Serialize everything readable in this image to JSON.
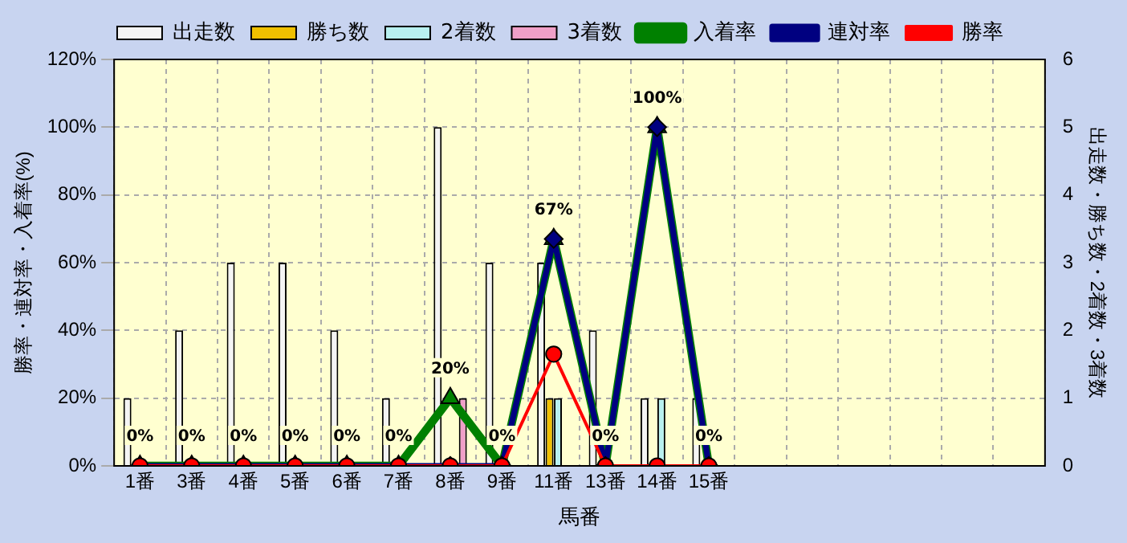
{
  "chart_data": {
    "type": "bar",
    "xlabel": "馬番",
    "ylabel": "勝率・連対率・入着率(%)",
    "y2label": "出走数・勝ち数・2着数・3着数",
    "categories": [
      "1番",
      "3番",
      "4番",
      "5番",
      "6番",
      "7番",
      "8番",
      "9番",
      "11番",
      "13番",
      "14番",
      "15番",
      null,
      null,
      null,
      null,
      null,
      null
    ],
    "series": [
      {
        "name": "出走数",
        "type": "bar",
        "axis": "y2",
        "color": "#f4f4f4",
        "values": [
          1,
          2,
          3,
          3,
          2,
          1,
          5,
          3,
          3,
          2,
          1,
          1,
          null,
          null,
          null,
          null,
          null,
          null
        ]
      },
      {
        "name": "勝ち数",
        "type": "bar",
        "axis": "y2",
        "color": "#f0c000",
        "values": [
          0,
          0,
          0,
          0,
          0,
          0,
          0,
          0,
          1,
          0,
          0,
          0,
          null,
          null,
          null,
          null,
          null,
          null
        ]
      },
      {
        "name": "2着数",
        "type": "bar",
        "axis": "y2",
        "color": "#b8f0f0",
        "values": [
          0,
          0,
          0,
          0,
          0,
          0,
          0,
          0,
          1,
          0,
          1,
          0,
          null,
          null,
          null,
          null,
          null,
          null
        ]
      },
      {
        "name": "3着数",
        "type": "bar",
        "axis": "y2",
        "color": "#f0a0c8",
        "values": [
          0,
          0,
          0,
          0,
          0,
          0,
          1,
          0,
          0,
          0,
          0,
          0,
          null,
          null,
          null,
          null,
          null,
          null
        ]
      },
      {
        "name": "入着率",
        "type": "line",
        "marker": "triangle",
        "color": "#008000",
        "values": [
          0,
          0,
          0,
          0,
          0,
          0,
          20,
          0,
          67,
          0,
          100,
          0,
          null,
          null,
          null,
          null,
          null,
          null
        ],
        "value_labels": [
          "0%",
          "0%",
          "0%",
          "0%",
          "0%",
          "0%",
          "20%",
          "0%",
          "67%",
          "0%",
          "100%",
          "0%",
          null,
          null,
          null,
          null,
          null,
          null
        ]
      },
      {
        "name": "連対率",
        "type": "line",
        "marker": "diamond",
        "color": "#000080",
        "values": [
          0,
          0,
          0,
          0,
          0,
          0,
          0,
          0,
          67,
          0,
          100,
          0,
          null,
          null,
          null,
          null,
          null,
          null
        ]
      },
      {
        "name": "勝率",
        "type": "line",
        "marker": "circle",
        "color": "#ff0000",
        "values": [
          0,
          0,
          0,
          0,
          0,
          0,
          0,
          0,
          33,
          0,
          0,
          0,
          null,
          null,
          null,
          null,
          null,
          null
        ]
      }
    ],
    "ylim": [
      0,
      120
    ],
    "yticks": [
      {
        "value": 0,
        "label": "0%"
      },
      {
        "value": 20,
        "label": "20%"
      },
      {
        "value": 40,
        "label": "40%"
      },
      {
        "value": 60,
        "label": "60%"
      },
      {
        "value": 80,
        "label": "80%"
      },
      {
        "value": 100,
        "label": "100%"
      },
      {
        "value": 120,
        "label": "120%"
      }
    ],
    "y2lim": [
      0,
      6
    ],
    "y2ticks": [
      0,
      1,
      2,
      3,
      4,
      5,
      6
    ],
    "grid": true,
    "legend": "top"
  }
}
